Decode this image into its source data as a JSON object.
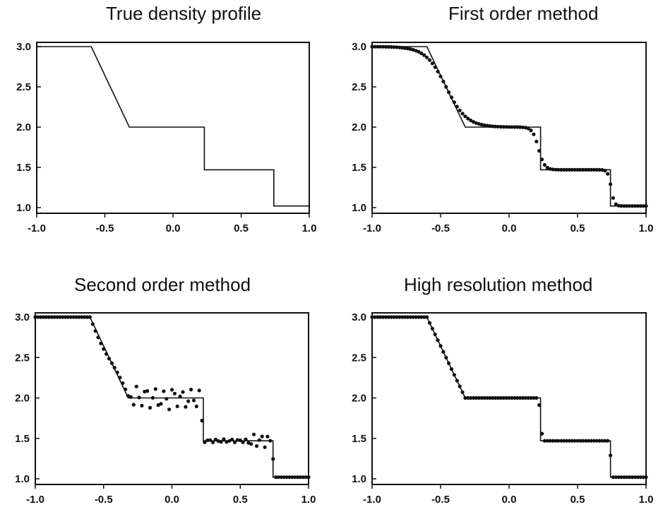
{
  "chart_data": [
    {
      "type": "line",
      "title": "True density profile",
      "xlim": [
        -1.0,
        1.0
      ],
      "ylim": [
        1.0,
        3.0
      ],
      "xticks": [
        "-1.0",
        "-0.5",
        "0.0",
        "0.5",
        "1.0"
      ],
      "yticks": [
        "1.0",
        "1.5",
        "2.0",
        "2.5",
        "3.0"
      ],
      "grid": false,
      "series": [
        {
          "kind": "exact",
          "x": [
            -1.0,
            -0.6,
            -0.32,
            0.23,
            0.23,
            0.74,
            0.74,
            1.0
          ],
          "y": [
            3.0,
            3.0,
            2.0,
            2.0,
            1.47,
            1.47,
            1.02,
            1.02
          ]
        }
      ]
    },
    {
      "type": "line",
      "title": "First order method",
      "xlim": [
        -1.0,
        1.0
      ],
      "ylim": [
        1.0,
        3.0
      ],
      "xticks": [
        "-1.0",
        "-0.5",
        "0.0",
        "0.5",
        "1.0"
      ],
      "yticks": [
        "1.0",
        "1.5",
        "2.0",
        "2.5",
        "3.0"
      ],
      "grid": false,
      "series": [
        {
          "kind": "exact",
          "x": [
            -1.0,
            -0.6,
            -0.32,
            0.23,
            0.23,
            0.74,
            0.74,
            1.0
          ],
          "y": [
            3.0,
            3.0,
            2.0,
            2.0,
            1.47,
            1.47,
            1.02,
            1.02
          ]
        },
        {
          "kind": "numerical",
          "method": "first"
        }
      ]
    },
    {
      "type": "line",
      "title": "Second order method",
      "xlim": [
        -1.0,
        1.0
      ],
      "ylim": [
        1.0,
        3.0
      ],
      "xticks": [
        "-1.0",
        "-0.5",
        "0.0",
        "0.5",
        "1.0"
      ],
      "yticks": [
        "1.0",
        "1.5",
        "2.0",
        "2.5",
        "3.0"
      ],
      "grid": false,
      "series": [
        {
          "kind": "exact",
          "x": [
            -1.0,
            -0.6,
            -0.32,
            0.23,
            0.23,
            0.74,
            0.74,
            1.0
          ],
          "y": [
            3.0,
            3.0,
            2.0,
            2.0,
            1.47,
            1.47,
            1.02,
            1.02
          ]
        },
        {
          "kind": "numerical",
          "method": "second"
        }
      ]
    },
    {
      "type": "line",
      "title": "High resolution method",
      "xlim": [
        -1.0,
        1.0
      ],
      "ylim": [
        1.0,
        3.0
      ],
      "xticks": [
        "-1.0",
        "-0.5",
        "0.0",
        "0.5",
        "1.0"
      ],
      "yticks": [
        "1.0",
        "1.5",
        "2.0",
        "2.5",
        "3.0"
      ],
      "grid": false,
      "series": [
        {
          "kind": "exact",
          "x": [
            -1.0,
            -0.6,
            -0.32,
            0.23,
            0.23,
            0.74,
            0.74,
            1.0
          ],
          "y": [
            3.0,
            3.0,
            2.0,
            2.0,
            1.47,
            1.47,
            1.02,
            1.02
          ]
        },
        {
          "kind": "numerical",
          "method": "high"
        }
      ]
    }
  ]
}
